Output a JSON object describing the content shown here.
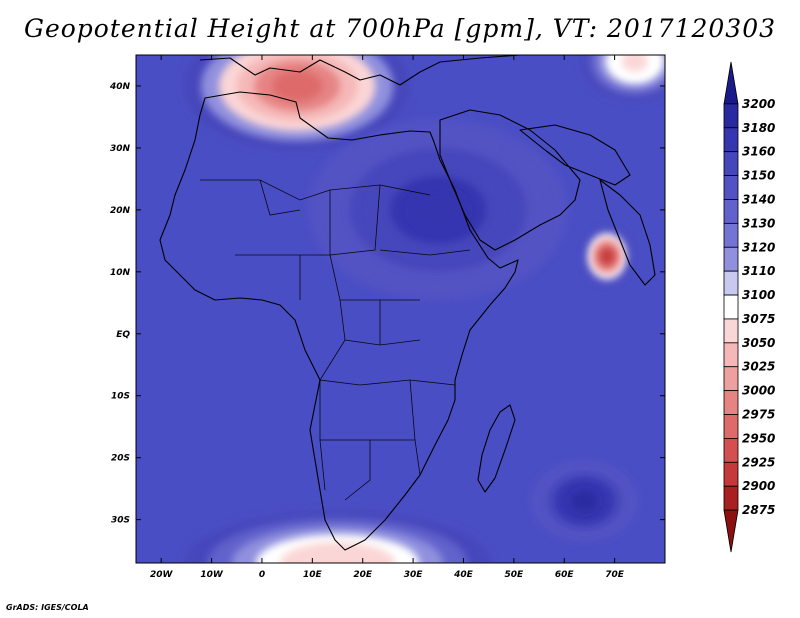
{
  "title": "Geopotential Height at 700hPa [gpm], VT: 2017120303",
  "credit": "GrADS: IGES/COLA",
  "map": {
    "lon_range": [
      -25,
      80
    ],
    "lat_range": [
      -37,
      45
    ],
    "lon_ticks": [
      {
        "value": -20,
        "label": "20W"
      },
      {
        "value": -10,
        "label": "10W"
      },
      {
        "value": 0,
        "label": "0"
      },
      {
        "value": 10,
        "label": "10E"
      },
      {
        "value": 20,
        "label": "20E"
      },
      {
        "value": 30,
        "label": "30E"
      },
      {
        "value": 40,
        "label": "40E"
      },
      {
        "value": 50,
        "label": "50E"
      },
      {
        "value": 60,
        "label": "60E"
      },
      {
        "value": 70,
        "label": "70E"
      }
    ],
    "lat_ticks": [
      {
        "value": 40,
        "label": "40N"
      },
      {
        "value": 30,
        "label": "30N"
      },
      {
        "value": 20,
        "label": "20N"
      },
      {
        "value": 10,
        "label": "10N"
      },
      {
        "value": 0,
        "label": "EQ"
      },
      {
        "value": -10,
        "label": "10S"
      },
      {
        "value": -20,
        "label": "20S"
      },
      {
        "value": -30,
        "label": "30S"
      }
    ],
    "background_color": "#4a4ec4",
    "field_features": [
      {
        "kind": "low",
        "name": "mediterranean-low",
        "lon": 7,
        "lat": 40,
        "rx": 22,
        "ry": 10,
        "core_value": 2950
      },
      {
        "kind": "low",
        "name": "arabian-sea-cyclone",
        "lon": 68.5,
        "lat": 12.5,
        "rx": 4,
        "ry": 4,
        "core_value": 2900
      },
      {
        "kind": "low",
        "name": "south-atlantic-trough",
        "lon": 15,
        "lat": -37,
        "rx": 30,
        "ry": 8,
        "core_value": 3050
      },
      {
        "kind": "low",
        "name": "northeast-corner-low",
        "lon": 74,
        "lat": 44,
        "rx": 10,
        "ry": 6,
        "core_value": 3060
      },
      {
        "kind": "high",
        "name": "sahara-arabia-ridge",
        "lon": 35,
        "lat": 20,
        "rx": 25,
        "ry": 14,
        "core_value": 3170
      },
      {
        "kind": "high",
        "name": "indian-ocean-high",
        "lon": 64,
        "lat": -27,
        "rx": 10,
        "ry": 6,
        "core_value": 3180
      }
    ]
  },
  "colorbar": {
    "levels": [
      "3200",
      "3180",
      "3160",
      "3150",
      "3140",
      "3130",
      "3120",
      "3110",
      "3100",
      "3075",
      "3050",
      "3025",
      "3000",
      "2975",
      "2950",
      "2925",
      "2900",
      "2875"
    ],
    "colors": [
      "#1a1a8c",
      "#2a2aa0",
      "#3636b0",
      "#4646bc",
      "#5252c4",
      "#6262cc",
      "#7474d4",
      "#9090de",
      "#c8c8f0",
      "#ffffff",
      "#fbd6d6",
      "#f5b8b8",
      "#eea0a0",
      "#e68484",
      "#de6a6a",
      "#d45050",
      "#c43a3a",
      "#a82020",
      "#8c1010"
    ]
  }
}
